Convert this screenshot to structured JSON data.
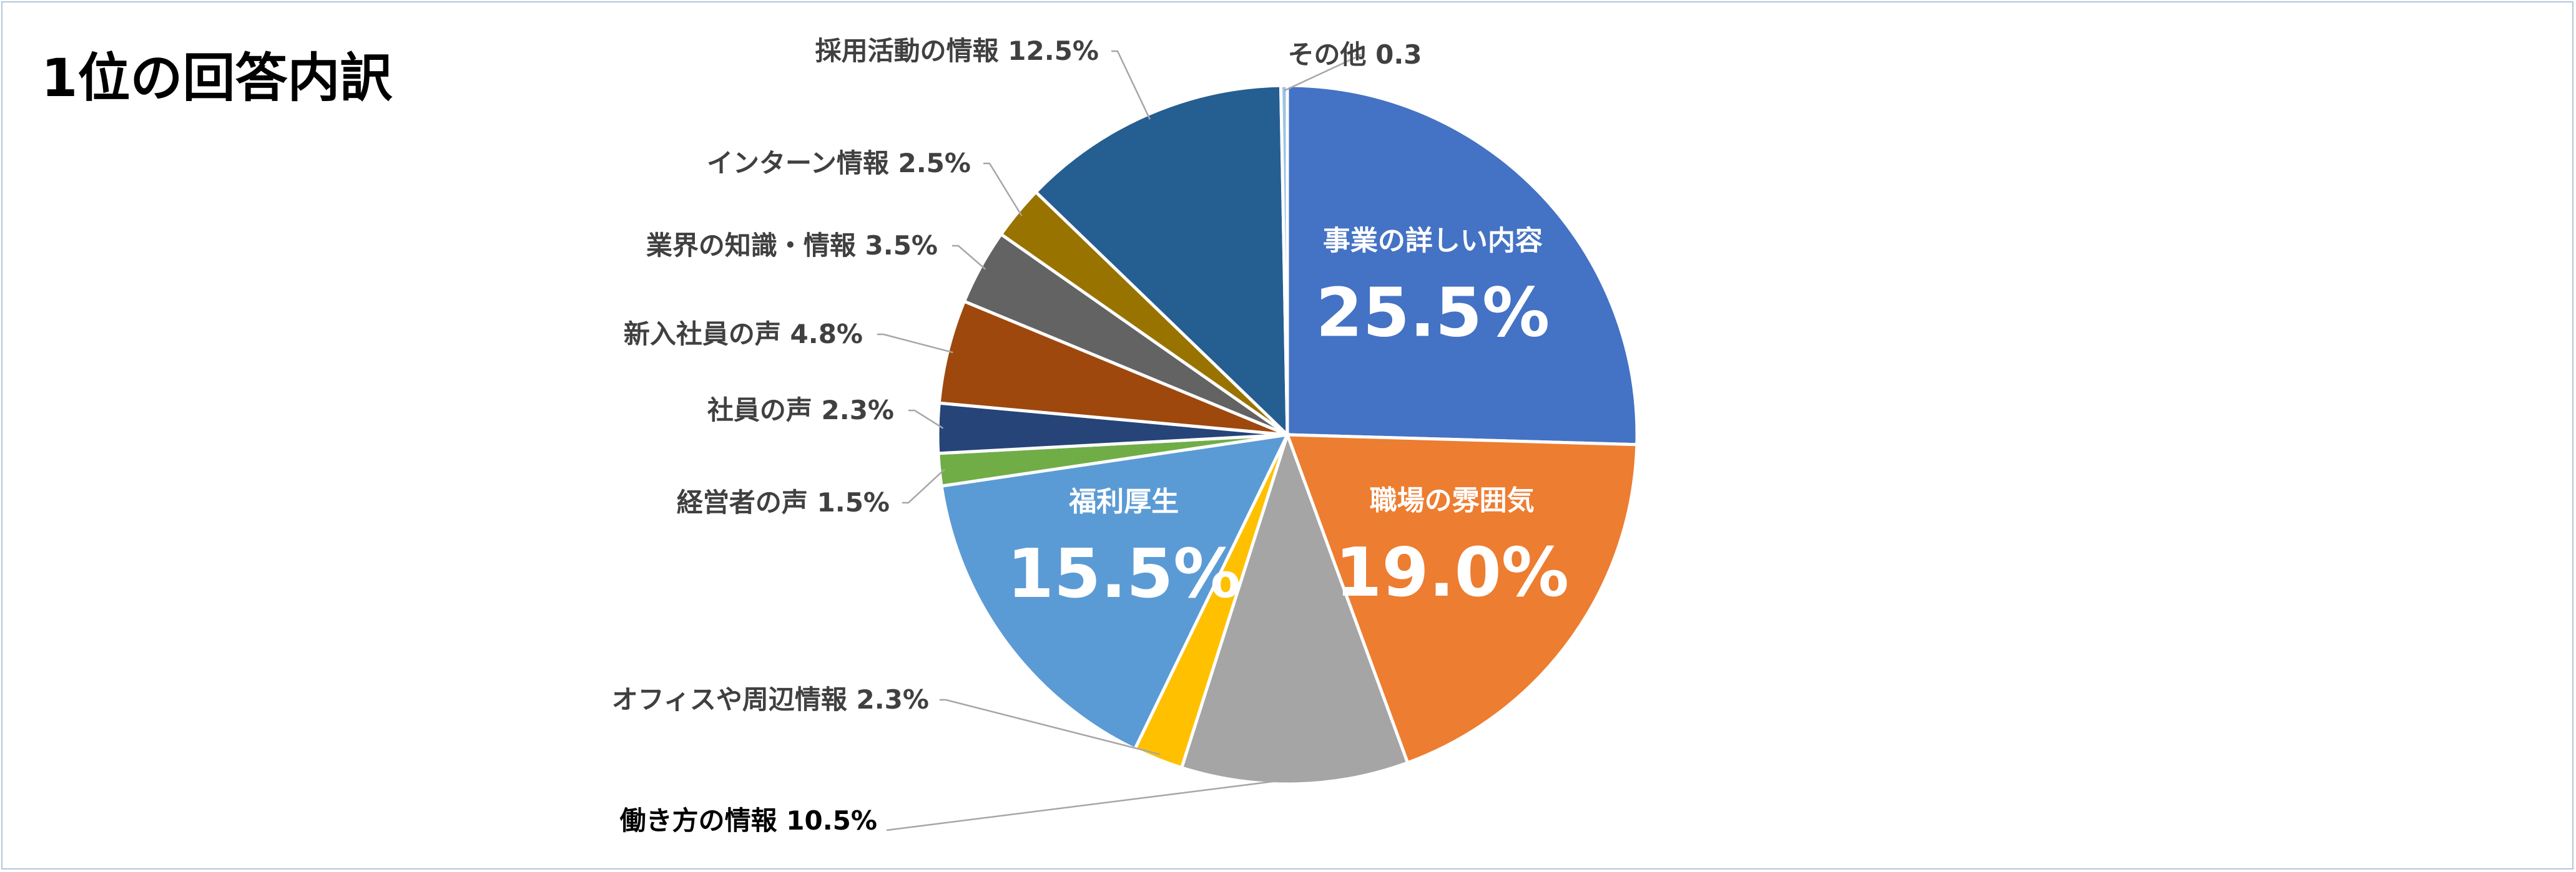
{
  "chart_data": {
    "type": "pie",
    "title": "1位の回答内訳",
    "slices": [
      {
        "name": "事業の詳しい内容",
        "value": 25.5,
        "value_label": "25.5%",
        "color": "#4472c4",
        "label_position": "inside"
      },
      {
        "name": "職場の雰囲気",
        "value": 19.0,
        "value_label": "19.0%",
        "color": "#ed7d31",
        "label_position": "inside"
      },
      {
        "name": "",
        "value": 10.5,
        "value_label": "",
        "color": "#a5a5a5",
        "label_position": "none"
      },
      {
        "name": "オフィスや周辺情報",
        "value": 2.3,
        "value_label": "2.3%",
        "color": "#ffc000",
        "label_position": "outside"
      },
      {
        "name": "福利厚生",
        "value": 15.5,
        "value_label": "15.5%",
        "color": "#5b9bd5",
        "label_position": "inside"
      },
      {
        "name": "経営者の声",
        "value": 1.5,
        "value_label": "1.5%",
        "color": "#70ad47",
        "label_position": "outside"
      },
      {
        "name": "社員の声",
        "value": 2.3,
        "value_label": "2.3%",
        "color": "#264478",
        "label_position": "outside"
      },
      {
        "name": "新入社員の声",
        "value": 4.8,
        "value_label": "4.8%",
        "color": "#9e480e",
        "label_position": "outside"
      },
      {
        "name": "業界の知識・情報",
        "value": 3.5,
        "value_label": "3.5%",
        "color": "#636363",
        "label_position": "outside"
      },
      {
        "name": "インターン情報",
        "value": 2.5,
        "value_label": "2.5%",
        "color": "#997300",
        "label_position": "outside"
      },
      {
        "name": "採用活動の情報",
        "value": 12.5,
        "value_label": "12.5%",
        "color": "#255e91",
        "label_position": "outside"
      },
      {
        "name": "その他",
        "value": 0.3,
        "value_label": "0.3",
        "color": "#9dc3e6",
        "label_position": "outside"
      }
    ],
    "extra_labels": [
      {
        "name": "働き方の情報",
        "value_label": "10.5%",
        "points_to": "",
        "color": "#000000"
      }
    ],
    "start_angle": "12 o'clock",
    "direction": "clockwise",
    "legend": "none"
  }
}
